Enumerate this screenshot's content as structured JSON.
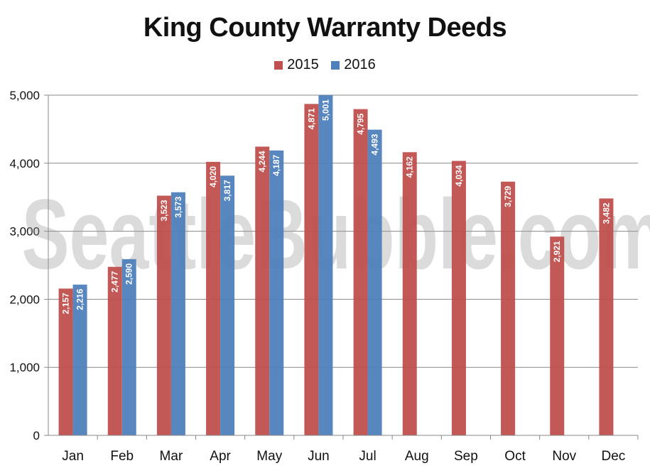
{
  "chart_data": {
    "type": "bar",
    "title": "King County Warranty Deeds",
    "categories": [
      "Jan",
      "Feb",
      "Mar",
      "Apr",
      "May",
      "Jun",
      "Jul",
      "Aug",
      "Sep",
      "Oct",
      "Nov",
      "Dec"
    ],
    "series": [
      {
        "name": "2015",
        "color": "#c0504d",
        "values": [
          2157,
          2477,
          3523,
          4020,
          4244,
          4871,
          4795,
          4162,
          4034,
          3729,
          2921,
          3482
        ],
        "labels": [
          "2,157",
          "2,477",
          "3,523",
          "4,020",
          "4,244",
          "4,871",
          "4,795",
          "4,162",
          "4,034",
          "3,729",
          "2,921",
          "3,482"
        ]
      },
      {
        "name": "2016",
        "color": "#4f81bd",
        "values": [
          2216,
          2590,
          3573,
          3817,
          4187,
          5001,
          4493,
          null,
          null,
          null,
          null,
          null
        ],
        "labels": [
          "2,216",
          "2,590",
          "3,573",
          "3,817",
          "4,187",
          "5,001",
          "4,493",
          null,
          null,
          null,
          null,
          null
        ]
      }
    ],
    "ylim": [
      0,
      5000
    ],
    "yticks": [
      0,
      1000,
      2000,
      3000,
      4000,
      5000
    ],
    "ytick_labels": [
      "0",
      "1,000",
      "2,000",
      "3,000",
      "4,000",
      "5,000"
    ],
    "legend_position": "top-center",
    "grid": true,
    "watermark": "SeattleBubble.com"
  }
}
